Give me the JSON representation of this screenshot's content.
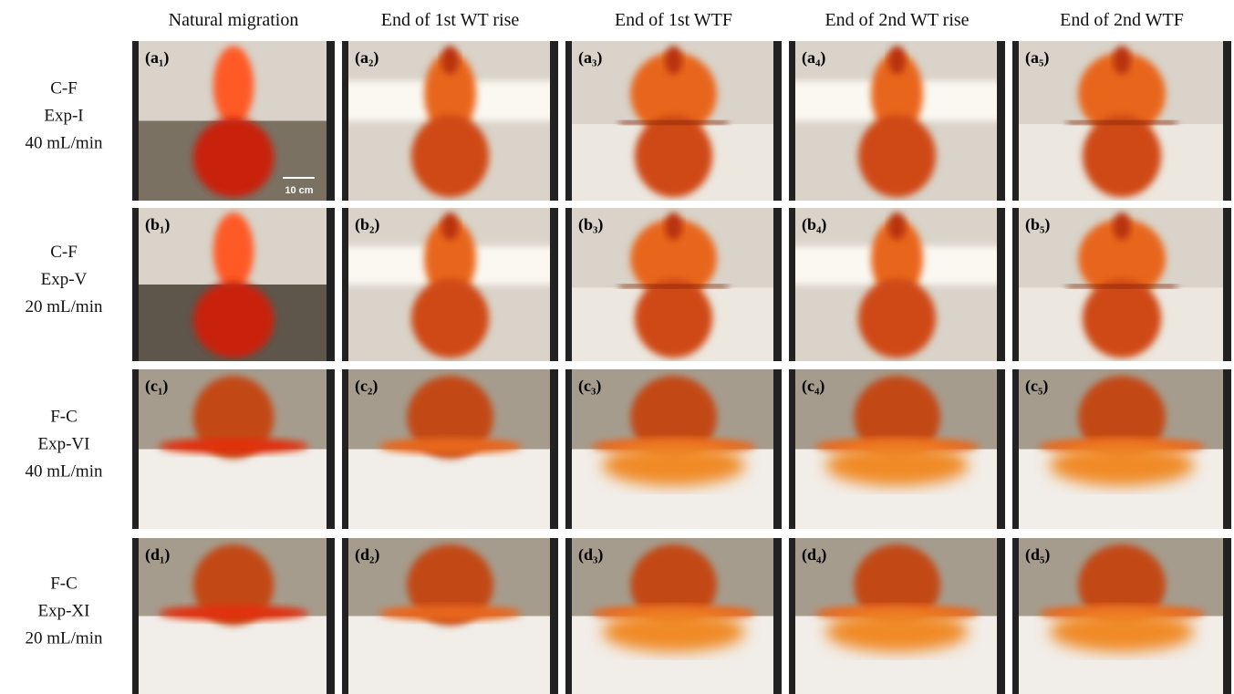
{
  "columns": [
    "Natural migration",
    "End of 1st WT rise",
    "End of 1st WTF",
    "End of 2nd WT rise",
    "End of 2nd WTF"
  ],
  "rows": [
    {
      "label": [
        "C-F",
        "Exp-I",
        "40 mL/min"
      ],
      "panels": [
        "(a₁)",
        "(a₂)",
        "(a₃)",
        "(a₄)",
        "(a₅)"
      ]
    },
    {
      "label": [
        "C-F",
        "Exp-V",
        "20 mL/min"
      ],
      "panels": [
        "(b₁)",
        "(b₂)",
        "(b₃)",
        "(b₄)",
        "(b₅)"
      ]
    },
    {
      "label": [
        "F-C",
        "Exp-VI",
        "40 mL/min"
      ],
      "panels": [
        "(c₁)",
        "(c₂)",
        "(c₃)",
        "(c₄)",
        "(c₅)"
      ]
    },
    {
      "label": [
        "F-C",
        "Exp-XI",
        "20 mL/min"
      ],
      "panels": [
        "(d₁)",
        "(d₂)",
        "(d₃)",
        "(d₄)",
        "(d₅)"
      ]
    }
  ],
  "scale_bar": "10 cm"
}
